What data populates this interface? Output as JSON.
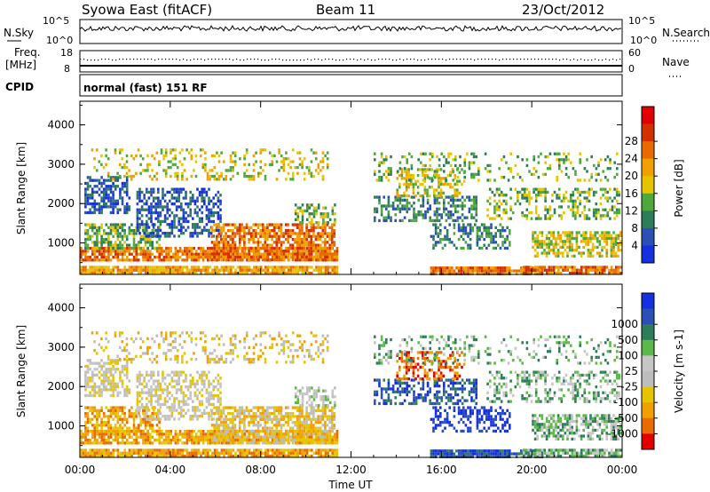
{
  "header": {
    "title": "Syowa East (fitACF)",
    "beam": "Beam 11",
    "date": "23/Oct/2012"
  },
  "status_panels": {
    "nsky_label": "N.Sky",
    "nsearch_label": "N.Search",
    "nsky_ticks": [
      "10^5",
      "10^0"
    ],
    "nsearch_ticks": [
      "10^5",
      "10^0"
    ],
    "freq_label_line1": "Freq.",
    "freq_label_line2": "[MHz]",
    "freq_ticks": [
      "18",
      "8"
    ],
    "nave_label": "Nave",
    "nave_ticks": [
      "60",
      "0"
    ],
    "cpid_label": "CPID",
    "cpid_text": "normal (fast) 151 RF"
  },
  "colors": {
    "power_scale": [
      "#1530e0",
      "#2a4fb5",
      "#2e7d5a",
      "#4fa83c",
      "#e6c400",
      "#f0a000",
      "#e86a00",
      "#d23000",
      "#e00000"
    ],
    "velocity_scale": [
      "#e00000",
      "#e86a00",
      "#f0a000",
      "#e6c400",
      "#bdbdbd",
      "#c6c6c6",
      "#5db84a",
      "#2e7d5a",
      "#2a4fb5",
      "#1530e0"
    ]
  },
  "chart_data": [
    {
      "type": "heatmap",
      "title": "",
      "ylabel": "Slant Range [km]",
      "xlabel": "",
      "x_ticks": [
        "00:00",
        "04:00",
        "08:00",
        "12:00",
        "16:00",
        "20:00",
        "00:00"
      ],
      "y_ticks": [
        "1000",
        "2000",
        "3000",
        "4000"
      ],
      "ylim": [
        200,
        4600
      ],
      "colorbar": {
        "label": "Power [dB]",
        "tick_labels": [
          "4",
          "8",
          "12",
          "16",
          "20",
          "24",
          "28"
        ],
        "range": [
          0,
          30
        ]
      }
    },
    {
      "type": "heatmap",
      "title": "",
      "ylabel": "Slant Range [km]",
      "xlabel": "Time UT",
      "x_ticks": [
        "00:00",
        "04:00",
        "08:00",
        "12:00",
        "16:00",
        "20:00",
        "00:00"
      ],
      "y_ticks": [
        "1000",
        "2000",
        "3000",
        "4000"
      ],
      "ylim": [
        200,
        4600
      ],
      "colorbar": {
        "label": "Velocity [m s-1]",
        "tick_labels": [
          "-1000",
          "-500",
          "-100",
          "-25",
          "25",
          "100",
          "500",
          "1000"
        ],
        "range": [
          -1200,
          1200
        ]
      }
    }
  ]
}
